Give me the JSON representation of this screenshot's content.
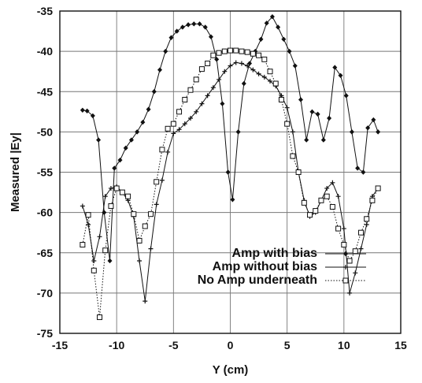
{
  "chart_data": {
    "type": "line",
    "title": "",
    "xlabel": "Y (cm)",
    "ylabel": "Measured |Ey|",
    "xlim": [
      -15,
      15
    ],
    "ylim": [
      -75,
      -35
    ],
    "xticks": [
      "-15",
      "-10",
      "-5",
      "0",
      "5",
      "10",
      "15"
    ],
    "yticks": [
      "-35",
      "-40",
      "-45",
      "-50",
      "-55",
      "-60",
      "-65",
      "-70",
      "-75"
    ],
    "grid": true,
    "legend_position": "bottom-right",
    "series": [
      {
        "name": "Amp with bias",
        "marker": "diamond",
        "style": "solid",
        "points": [
          [
            -13.0,
            -47.3
          ],
          [
            -12.6,
            -47.4
          ],
          [
            -12.1,
            -48.0
          ],
          [
            -11.6,
            -51.0
          ],
          [
            -11.1,
            -60.0
          ],
          [
            -10.6,
            -66.0
          ],
          [
            -10.2,
            -54.5
          ],
          [
            -9.7,
            -53.5
          ],
          [
            -9.2,
            -52.0
          ],
          [
            -8.7,
            -51.0
          ],
          [
            -8.2,
            -50.0
          ],
          [
            -7.7,
            -48.8
          ],
          [
            -7.2,
            -47.2
          ],
          [
            -6.7,
            -45.0
          ],
          [
            -6.2,
            -42.3
          ],
          [
            -5.7,
            -40.0
          ],
          [
            -5.2,
            -38.3
          ],
          [
            -4.7,
            -37.5
          ],
          [
            -4.2,
            -37.0
          ],
          [
            -3.7,
            -36.7
          ],
          [
            -3.2,
            -36.6
          ],
          [
            -2.7,
            -36.6
          ],
          [
            -2.2,
            -37.0
          ],
          [
            -1.7,
            -38.2
          ],
          [
            -1.2,
            -41.0
          ],
          [
            -0.7,
            -46.5
          ],
          [
            -0.2,
            -55.0
          ],
          [
            0.2,
            -58.4
          ],
          [
            0.7,
            -50.0
          ],
          [
            1.2,
            -44.0
          ],
          [
            1.7,
            -41.5
          ],
          [
            2.2,
            -40.0
          ],
          [
            2.7,
            -38.5
          ],
          [
            3.2,
            -36.5
          ],
          [
            3.7,
            -35.7
          ],
          [
            4.2,
            -37.0
          ],
          [
            4.7,
            -38.5
          ],
          [
            5.2,
            -40.0
          ],
          [
            5.7,
            -41.8
          ],
          [
            6.2,
            -46.0
          ],
          [
            6.7,
            -51.0
          ],
          [
            7.2,
            -47.5
          ],
          [
            7.7,
            -47.8
          ],
          [
            8.2,
            -51.0
          ],
          [
            8.7,
            -48.3
          ],
          [
            9.2,
            -42.0
          ],
          [
            9.7,
            -43.0
          ],
          [
            10.2,
            -45.5
          ],
          [
            10.7,
            -50.0
          ],
          [
            11.2,
            -54.5
          ],
          [
            11.7,
            -55.0
          ],
          [
            12.1,
            -49.5
          ],
          [
            12.6,
            -48.5
          ],
          [
            13.0,
            -50.0
          ]
        ]
      },
      {
        "name": "Amp without bias",
        "marker": "plus",
        "style": "solid",
        "points": [
          [
            -13.0,
            -59.2
          ],
          [
            -12.5,
            -61.5
          ],
          [
            -12.0,
            -66.0
          ],
          [
            -11.5,
            -63.0
          ],
          [
            -11.0,
            -58.0
          ],
          [
            -10.5,
            -57.0
          ],
          [
            -10.0,
            -56.8
          ],
          [
            -9.5,
            -57.5
          ],
          [
            -9.0,
            -58.5
          ],
          [
            -8.5,
            -60.5
          ],
          [
            -8.0,
            -66.0
          ],
          [
            -7.5,
            -71.0
          ],
          [
            -7.0,
            -64.5
          ],
          [
            -6.5,
            -59.0
          ],
          [
            -6.0,
            -56.0
          ],
          [
            -5.5,
            -52.5
          ],
          [
            -5.0,
            -50.2
          ],
          [
            -4.5,
            -49.7
          ],
          [
            -4.0,
            -49.0
          ],
          [
            -3.5,
            -48.3
          ],
          [
            -3.0,
            -47.5
          ],
          [
            -2.5,
            -46.5
          ],
          [
            -2.0,
            -45.5
          ],
          [
            -1.5,
            -44.5
          ],
          [
            -1.0,
            -43.5
          ],
          [
            -0.5,
            -42.5
          ],
          [
            0.0,
            -41.8
          ],
          [
            0.5,
            -41.4
          ],
          [
            1.0,
            -41.5
          ],
          [
            1.5,
            -41.8
          ],
          [
            2.0,
            -42.3
          ],
          [
            2.5,
            -42.8
          ],
          [
            3.0,
            -43.2
          ],
          [
            3.5,
            -43.7
          ],
          [
            4.0,
            -44.3
          ],
          [
            4.5,
            -45.5
          ],
          [
            5.0,
            -47.0
          ],
          [
            5.5,
            -50.0
          ],
          [
            6.0,
            -55.0
          ],
          [
            6.5,
            -58.5
          ],
          [
            7.0,
            -60.5
          ],
          [
            7.5,
            -60.0
          ],
          [
            8.0,
            -58.5
          ],
          [
            8.5,
            -57.0
          ],
          [
            9.0,
            -56.3
          ],
          [
            9.5,
            -58.0
          ],
          [
            10.0,
            -62.0
          ],
          [
            10.5,
            -70.0
          ],
          [
            11.0,
            -67.5
          ],
          [
            11.5,
            -64.5
          ],
          [
            12.0,
            -61.5
          ],
          [
            12.5,
            -58.0
          ],
          [
            13.0,
            -57.0
          ]
        ]
      },
      {
        "name": "No Amp underneath",
        "marker": "square",
        "style": "dotted",
        "points": [
          [
            -13.0,
            -64.0
          ],
          [
            -12.5,
            -60.3
          ],
          [
            -12.0,
            -67.2
          ],
          [
            -11.5,
            -73.0
          ],
          [
            -11.0,
            -64.7
          ],
          [
            -10.5,
            -59.2
          ],
          [
            -10.0,
            -57.0
          ],
          [
            -9.5,
            -57.5
          ],
          [
            -9.0,
            -58.0
          ],
          [
            -8.5,
            -60.2
          ],
          [
            -8.0,
            -63.5
          ],
          [
            -7.5,
            -61.7
          ],
          [
            -7.0,
            -60.2
          ],
          [
            -6.5,
            -56.2
          ],
          [
            -6.0,
            -52.2
          ],
          [
            -5.5,
            -49.6
          ],
          [
            -5.0,
            -49.0
          ],
          [
            -4.5,
            -47.5
          ],
          [
            -4.0,
            -46.0
          ],
          [
            -3.5,
            -44.8
          ],
          [
            -3.0,
            -43.5
          ],
          [
            -2.5,
            -42.2
          ],
          [
            -2.0,
            -41.5
          ],
          [
            -1.5,
            -40.5
          ],
          [
            -1.0,
            -40.2
          ],
          [
            -0.5,
            -40.0
          ],
          [
            0.0,
            -39.9
          ],
          [
            0.5,
            -39.9
          ],
          [
            1.0,
            -40.0
          ],
          [
            1.5,
            -40.1
          ],
          [
            2.0,
            -40.3
          ],
          [
            2.5,
            -40.5
          ],
          [
            3.0,
            -41.0
          ],
          [
            3.5,
            -42.5
          ],
          [
            4.0,
            -44.0
          ],
          [
            4.5,
            -46.0
          ],
          [
            5.0,
            -49.0
          ],
          [
            5.5,
            -53.0
          ],
          [
            6.0,
            -55.0
          ],
          [
            6.5,
            -58.8
          ],
          [
            7.0,
            -60.3
          ],
          [
            7.5,
            -59.8
          ],
          [
            8.0,
            -58.5
          ],
          [
            8.5,
            -58.0
          ],
          [
            9.0,
            -59.3
          ],
          [
            9.5,
            -62.0
          ],
          [
            10.0,
            -64.0
          ],
          [
            10.5,
            -66.0
          ],
          [
            11.0,
            -64.8
          ],
          [
            11.5,
            -62.5
          ],
          [
            12.0,
            -60.8
          ],
          [
            12.5,
            -58.5
          ],
          [
            13.0,
            -57.0
          ]
        ]
      }
    ]
  }
}
